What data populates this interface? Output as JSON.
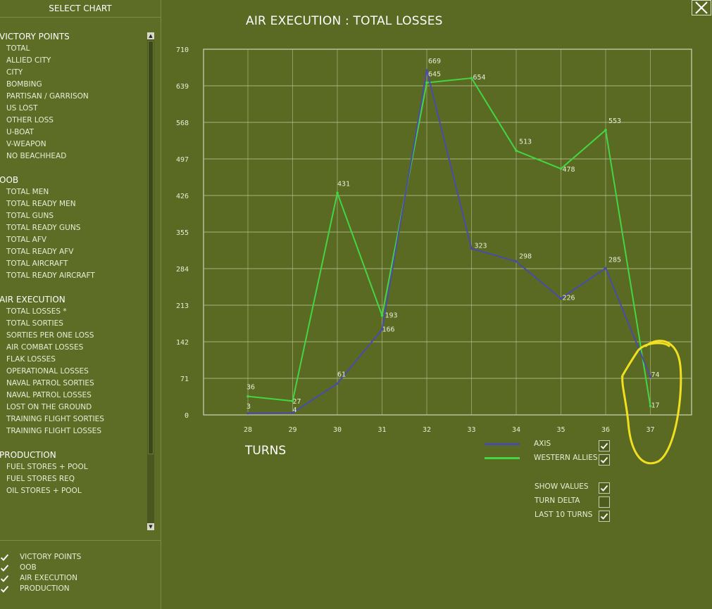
{
  "sidebar": {
    "title": "SELECT CHART",
    "sections": [
      {
        "title": "VICTORY POINTS",
        "items": [
          "TOTAL",
          "ALLIED CITY",
          "CITY",
          "BOMBING",
          "PARTISAN / GARRISON",
          "US LOST",
          "OTHER LOSS",
          "U-BOAT",
          "V-WEAPON",
          "NO BEACHHEAD"
        ]
      },
      {
        "title": "OOB",
        "items": [
          "TOTAL MEN",
          "TOTAL READY MEN",
          "TOTAL GUNS",
          "TOTAL READY GUNS",
          "TOTAL AFV",
          "TOTAL READY AFV",
          "TOTAL AIRCRAFT",
          "TOTAL READY AIRCRAFT"
        ]
      },
      {
        "title": "AIR EXECUTION",
        "items": [
          "TOTAL LOSSES *",
          "TOTAL SORTIES",
          "SORTIES PER ONE LOSS",
          "AIR COMBAT LOSSES",
          "FLAK LOSSES",
          "OPERATIONAL LOSSES",
          "NAVAL PATROL SORTIES",
          "NAVAL PATROL LOSSES",
          "LOST ON THE GROUND",
          "TRAINING FLIGHT SORTIES",
          "TRAINING FLIGHT LOSSES"
        ]
      },
      {
        "title": "PRODUCTION",
        "items": [
          "FUEL STORES + POOL",
          "FUEL STORES REQ",
          "OIL STORES + POOL"
        ]
      }
    ],
    "filters": [
      {
        "label": "VICTORY POINTS",
        "checked": true
      },
      {
        "label": "OOB",
        "checked": true
      },
      {
        "label": "AIR EXECUTION",
        "checked": true
      },
      {
        "label": "PRODUCTION",
        "checked": true
      }
    ]
  },
  "chart_title": "AIR EXECUTION : TOTAL LOSSES",
  "turns_label": "TURNS",
  "options": [
    {
      "label": "SHOW VALUES",
      "checked": true
    },
    {
      "label": "TURN DELTA",
      "checked": false
    },
    {
      "label": "LAST 10 TURNS",
      "checked": true
    }
  ],
  "colors": {
    "axis": "#4a4ca6",
    "western_allies": "#44d444",
    "grid": "#b8c090",
    "highlight": "#f0e020"
  },
  "chart_data": {
    "type": "line",
    "title": "AIR EXECUTION : TOTAL LOSSES",
    "xlabel": "TURNS",
    "ylabel": "",
    "x": [
      28,
      29,
      30,
      31,
      32,
      33,
      34,
      35,
      36,
      37
    ],
    "y_ticks": [
      0,
      71,
      142,
      213,
      284,
      355,
      426,
      497,
      568,
      639,
      710
    ],
    "ylim": [
      0,
      710
    ],
    "grid": true,
    "series": [
      {
        "name": "AXIS",
        "color": "#4a4ca6",
        "visible": true,
        "values": [
          3,
          4,
          61,
          166,
          669,
          323,
          298,
          226,
          285,
          74
        ]
      },
      {
        "name": "WESTERN ALLIES",
        "color": "#44d444",
        "visible": true,
        "values": [
          36,
          27,
          431,
          193,
          645,
          654,
          513,
          478,
          553,
          17
        ]
      }
    ],
    "annotation": "hand-drawn yellow circle around turn 37"
  }
}
